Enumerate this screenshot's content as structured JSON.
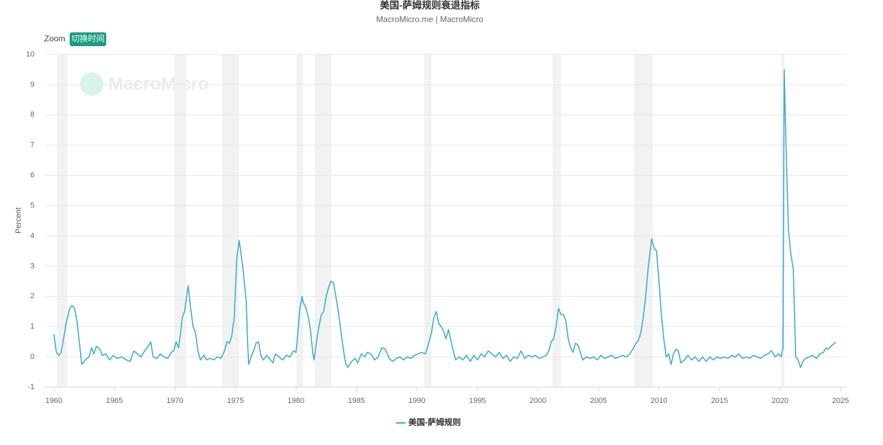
{
  "chart_data": {
    "type": "line",
    "title": "美国-萨姆规则衰退指标",
    "subtitle": "MacroMicro.me | MacroMicro",
    "zoom_label": "Zoom",
    "zoom_button": "切换时间",
    "watermark": "MacroMicro",
    "y_label": "Percent",
    "xlim": [
      1959.25,
      2025.55
    ],
    "ylim": [
      -1,
      10
    ],
    "xticks": [
      1960,
      1965,
      1970,
      1975,
      1980,
      1985,
      1990,
      1995,
      2000,
      2005,
      2010,
      2015,
      2020,
      2025
    ],
    "yticks": [
      -1,
      0,
      1,
      2,
      3,
      4,
      5,
      6,
      7,
      8,
      9,
      10
    ],
    "grid": true,
    "recessions": [
      [
        1960.25,
        1961.1
      ],
      [
        1969.95,
        1970.95
      ],
      [
        1973.9,
        1975.3
      ],
      [
        1980.05,
        1980.6
      ],
      [
        1981.55,
        1982.95
      ],
      [
        1990.6,
        1991.2
      ],
      [
        2001.2,
        2001.9
      ],
      [
        2007.95,
        2009.5
      ],
      [
        2020.1,
        2020.35
      ]
    ],
    "x": [
      1960.0,
      1960.2,
      1960.4,
      1960.6,
      1960.8,
      1961.0,
      1961.3,
      1961.5,
      1961.7,
      1961.9,
      1962.1,
      1962.3,
      1962.6,
      1962.9,
      1963.1,
      1963.3,
      1963.5,
      1963.8,
      1964.0,
      1964.3,
      1964.6,
      1964.9,
      1965.2,
      1965.6,
      1966.0,
      1966.3,
      1966.6,
      1966.9,
      1967.2,
      1967.5,
      1967.8,
      1968.0,
      1968.2,
      1968.5,
      1968.8,
      1969.1,
      1969.4,
      1969.7,
      1969.9,
      1970.1,
      1970.3,
      1970.5,
      1970.6,
      1970.8,
      1971.0,
      1971.1,
      1971.3,
      1971.5,
      1971.7,
      1971.9,
      1972.1,
      1972.4,
      1972.6,
      1972.9,
      1973.2,
      1973.5,
      1973.8,
      1974.1,
      1974.3,
      1974.5,
      1974.7,
      1974.9,
      1975.0,
      1975.1,
      1975.3,
      1975.4,
      1975.6,
      1975.7,
      1975.9,
      1976.0,
      1976.1,
      1976.3,
      1976.5,
      1976.7,
      1976.9,
      1977.1,
      1977.3,
      1977.6,
      1977.9,
      1978.1,
      1978.3,
      1978.6,
      1978.9,
      1979.2,
      1979.5,
      1979.8,
      1980.0,
      1980.1,
      1980.3,
      1980.5,
      1980.6,
      1980.8,
      1981.0,
      1981.2,
      1981.4,
      1981.5,
      1981.7,
      1981.9,
      1982.1,
      1982.3,
      1982.5,
      1982.7,
      1982.9,
      1983.1,
      1983.3,
      1983.5,
      1983.7,
      1983.9,
      1984.1,
      1984.3,
      1984.6,
      1984.9,
      1985.1,
      1985.4,
      1985.7,
      1985.9,
      1986.2,
      1986.5,
      1986.8,
      1987.1,
      1987.4,
      1987.7,
      1988.0,
      1988.3,
      1988.6,
      1988.9,
      1989.2,
      1989.5,
      1989.8,
      1990.1,
      1990.4,
      1990.7,
      1991.0,
      1991.2,
      1991.4,
      1991.6,
      1991.8,
      1992.0,
      1992.2,
      1992.4,
      1992.6,
      1992.8,
      1993.0,
      1993.2,
      1993.5,
      1993.8,
      1994.1,
      1994.4,
      1994.7,
      1995.0,
      1995.3,
      1995.6,
      1995.9,
      1996.2,
      1996.5,
      1996.8,
      1997.1,
      1997.4,
      1997.7,
      1998.0,
      1998.3,
      1998.6,
      1998.9,
      1999.2,
      1999.5,
      1999.8,
      2000.1,
      2000.4,
      2000.7,
      2000.9,
      2001.1,
      2001.3,
      2001.5,
      2001.7,
      2001.9,
      2002.1,
      2002.3,
      2002.5,
      2002.7,
      2002.9,
      2003.1,
      2003.3,
      2003.5,
      2003.7,
      2004.0,
      2004.3,
      2004.6,
      2004.9,
      2005.2,
      2005.5,
      2005.8,
      2006.1,
      2006.4,
      2006.7,
      2007.0,
      2007.3,
      2007.6,
      2007.9,
      2008.1,
      2008.3,
      2008.5,
      2008.7,
      2008.9,
      2009.1,
      2009.3,
      2009.4,
      2009.6,
      2009.8,
      2010.0,
      2010.2,
      2010.4,
      2010.6,
      2010.8,
      2011.0,
      2011.2,
      2011.4,
      2011.6,
      2011.8,
      2012.1,
      2012.4,
      2012.7,
      2013.0,
      2013.3,
      2013.6,
      2013.9,
      2014.2,
      2014.5,
      2014.8,
      2015.1,
      2015.4,
      2015.7,
      2016.0,
      2016.3,
      2016.6,
      2016.9,
      2017.2,
      2017.5,
      2017.8,
      2018.1,
      2018.4,
      2018.7,
      2019.0,
      2019.3,
      2019.6,
      2019.9,
      2020.1,
      2020.25,
      2020.35,
      2020.5,
      2020.7,
      2020.9,
      2021.1,
      2021.3,
      2021.5,
      2021.7,
      2021.9,
      2022.1,
      2022.4,
      2022.7,
      2023.0,
      2023.3,
      2023.6,
      2023.8,
      2024.0,
      2024.2,
      2024.5,
      2024.6
    ],
    "series": [
      {
        "name": "美国-萨姆规则",
        "color": "#3aaec7",
        "values": [
          0.75,
          0.15,
          0.05,
          0.15,
          0.6,
          1.1,
          1.6,
          1.7,
          1.6,
          1.2,
          0.5,
          -0.25,
          -0.1,
          0.0,
          0.3,
          0.1,
          0.35,
          0.25,
          0.05,
          0.1,
          -0.1,
          0.05,
          -0.05,
          0.0,
          -0.1,
          -0.15,
          0.2,
          0.1,
          0.0,
          0.2,
          0.35,
          0.5,
          0.0,
          -0.05,
          0.1,
          0.0,
          -0.05,
          0.15,
          0.2,
          0.5,
          0.3,
          0.9,
          1.3,
          1.5,
          2.1,
          2.35,
          1.6,
          1.0,
          0.8,
          0.2,
          -0.1,
          0.05,
          -0.1,
          -0.05,
          -0.1,
          0.0,
          -0.05,
          0.2,
          0.5,
          0.45,
          0.7,
          1.3,
          2.2,
          3.2,
          3.85,
          3.6,
          3.0,
          2.6,
          1.8,
          0.5,
          -0.25,
          0.0,
          0.2,
          0.45,
          0.5,
          0.05,
          -0.1,
          0.05,
          -0.1,
          -0.2,
          0.1,
          0.0,
          -0.1,
          0.05,
          0.0,
          0.2,
          0.15,
          0.5,
          1.5,
          2.0,
          1.8,
          1.65,
          1.35,
          0.9,
          0.1,
          -0.1,
          0.5,
          1.0,
          1.4,
          1.5,
          2.0,
          2.3,
          2.5,
          2.45,
          2.0,
          1.5,
          0.9,
          0.3,
          -0.2,
          -0.35,
          -0.15,
          -0.05,
          -0.2,
          0.1,
          0.0,
          0.15,
          0.1,
          -0.1,
          0.0,
          0.3,
          0.25,
          -0.05,
          -0.15,
          -0.05,
          0.0,
          -0.1,
          0.0,
          -0.05,
          0.05,
          0.1,
          0.15,
          0.1,
          0.5,
          0.8,
          1.3,
          1.5,
          1.1,
          1.0,
          0.85,
          0.6,
          0.9,
          0.55,
          0.2,
          -0.1,
          0.0,
          -0.1,
          0.05,
          -0.15,
          0.05,
          -0.1,
          0.1,
          0.0,
          0.2,
          0.1,
          0.0,
          0.15,
          -0.05,
          0.05,
          -0.15,
          0.0,
          -0.05,
          0.2,
          -0.05,
          0.05,
          0.0,
          0.05,
          -0.05,
          0.0,
          0.05,
          0.2,
          0.5,
          0.6,
          1.0,
          1.6,
          1.4,
          1.4,
          1.2,
          0.6,
          0.3,
          0.15,
          0.45,
          0.4,
          0.15,
          -0.1,
          0.0,
          -0.05,
          0.0,
          -0.1,
          0.05,
          -0.05,
          0.0,
          0.05,
          -0.05,
          0.0,
          0.05,
          0.0,
          0.1,
          0.3,
          0.45,
          0.55,
          0.8,
          1.3,
          2.0,
          2.9,
          3.6,
          3.9,
          3.6,
          3.5,
          2.5,
          1.4,
          0.6,
          0.0,
          0.1,
          -0.25,
          0.1,
          0.25,
          0.2,
          -0.2,
          -0.1,
          0.05,
          -0.1,
          0.0,
          -0.15,
          0.0,
          -0.15,
          0.0,
          -0.1,
          0.0,
          -0.05,
          0.0,
          -0.05,
          0.05,
          0.0,
          0.1,
          -0.05,
          0.0,
          -0.05,
          0.05,
          0.0,
          -0.05,
          0.05,
          0.1,
          0.2,
          0.0,
          0.1,
          0.0,
          0.3,
          9.5,
          7.0,
          4.2,
          3.4,
          2.9,
          0.0,
          -0.1,
          -0.35,
          -0.15,
          -0.05,
          0.0,
          0.05,
          -0.05,
          0.1,
          0.15,
          0.3,
          0.25,
          0.35,
          0.45,
          0.5
        ]
      }
    ]
  }
}
